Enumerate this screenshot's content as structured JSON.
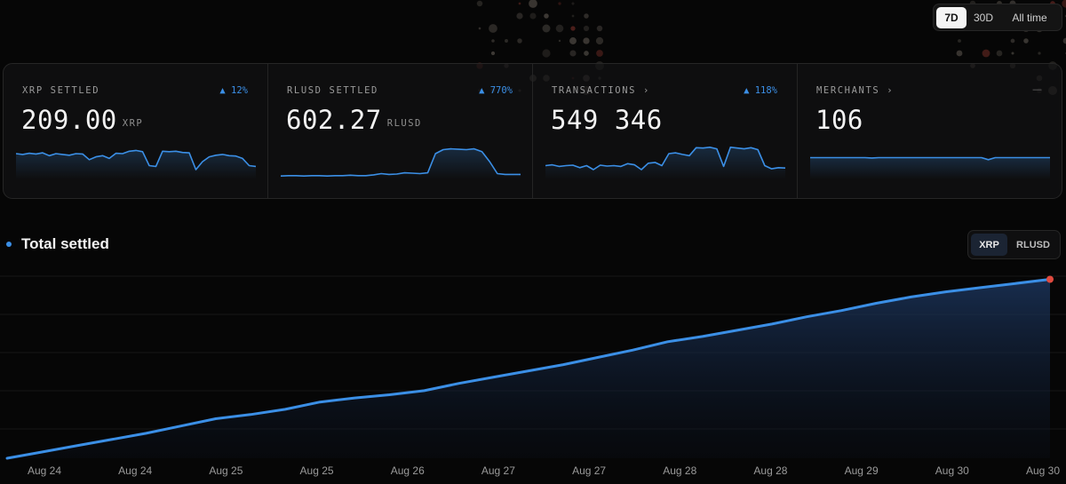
{
  "range": {
    "options": [
      "7D",
      "30D",
      "All time"
    ],
    "selected": "7D"
  },
  "stats": [
    {
      "label": "XRP SETTLED",
      "badge": "▲ 12%",
      "value": "209.00",
      "unit": "XRP",
      "spark": [
        60,
        58,
        61,
        59,
        62,
        55,
        60,
        58,
        56,
        60,
        59,
        45,
        52,
        55,
        48,
        61,
        60,
        66,
        68,
        65,
        30,
        28,
        66,
        65,
        66,
        63,
        62,
        20,
        40,
        52,
        56,
        58,
        55,
        54,
        48,
        30,
        28
      ]
    },
    {
      "label": "RLUSD SETTLED",
      "badge": "▲ 770%",
      "value": "602.27",
      "unit": "RLUSD",
      "spark": [
        4,
        5,
        5,
        4,
        5,
        5,
        4,
        5,
        5,
        6,
        5,
        5,
        7,
        10,
        8,
        9,
        12,
        11,
        10,
        12,
        60,
        70,
        72,
        71,
        70,
        72,
        65,
        40,
        10,
        8,
        8,
        8
      ]
    },
    {
      "label": "TRANSACTIONS ›",
      "badge": "▲ 118%",
      "value": "549 346",
      "unit": "",
      "spark": [
        30,
        32,
        28,
        30,
        31,
        25,
        30,
        20,
        31,
        29,
        30,
        28,
        35,
        32,
        20,
        36,
        38,
        30,
        60,
        62,
        58,
        55,
        75,
        74,
        76,
        72,
        28,
        76,
        74,
        72,
        75,
        70,
        30,
        22,
        25,
        24
      ]
    },
    {
      "label": "MERCHANTS ›",
      "badge": "",
      "value": "106",
      "unit": "",
      "spark": [
        50,
        50,
        50,
        50,
        50,
        50,
        50,
        50,
        50,
        49,
        50,
        50,
        50,
        50,
        50,
        50,
        50,
        50,
        50,
        50,
        50,
        50,
        50,
        50,
        50,
        50,
        45,
        50,
        50,
        50,
        50,
        50,
        50,
        50,
        50,
        50
      ]
    }
  ],
  "chart": {
    "title": "Total settled",
    "toggle": {
      "options": [
        "XRP",
        "RLUSD"
      ],
      "selected": "XRP"
    },
    "chart_data": {
      "type": "area",
      "x_ticks": [
        "Aug 24",
        "Aug 24",
        "Aug 25",
        "Aug 25",
        "Aug 26",
        "Aug 27",
        "Aug 27",
        "Aug 28",
        "Aug 28",
        "Aug 29",
        "Aug 30",
        "Aug 30"
      ],
      "series": [
        {
          "values": [
            0,
            6,
            12,
            18,
            24,
            31,
            38,
            42,
            47,
            54,
            58,
            61,
            65,
            72,
            78,
            84,
            90,
            97,
            104,
            112,
            117,
            123,
            129,
            136,
            142,
            149,
            155,
            160,
            164,
            168,
            172
          ]
        }
      ],
      "ylim": [
        0,
        175
      ],
      "grid": true,
      "line_color": "#3b8fe6",
      "end_marker_color": "#e04a3f"
    }
  },
  "colors": {
    "accent": "#3b8fe6",
    "background": "#060606"
  }
}
